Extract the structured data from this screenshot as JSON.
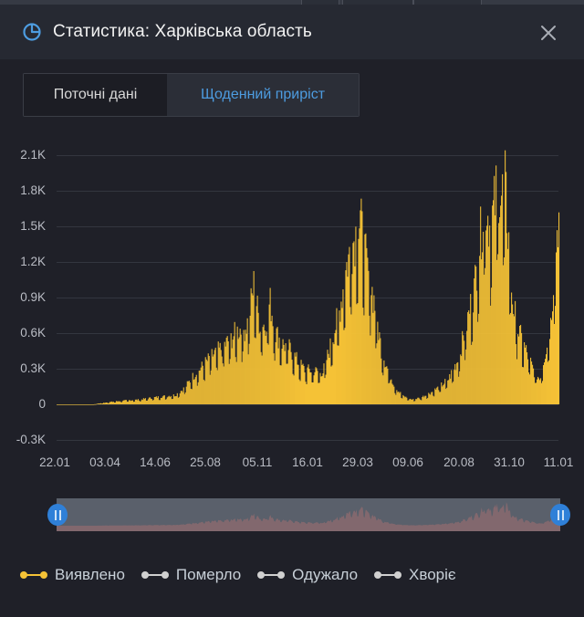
{
  "window": {
    "title": "Статистика: Харківська область",
    "icon": "pie-chart-icon",
    "close_icon": "close-icon"
  },
  "tabs": [
    {
      "label": "Поточні дані",
      "active": false
    },
    {
      "label": "Щоденний приріст",
      "active": true
    }
  ],
  "colors": {
    "accent": "#4d9ce0",
    "series_detected": "#f5c236",
    "series_inactive": "#d0d0d0",
    "background": "#1f2028",
    "header": "#262932",
    "handle": "#2f80d8"
  },
  "legend": [
    {
      "label": "Виявлено",
      "color": "#f5c236",
      "active": true
    },
    {
      "label": "Померло",
      "color": "#d0d0d0",
      "active": false
    },
    {
      "label": "Одужало",
      "color": "#d0d0d0",
      "active": false
    },
    {
      "label": "Хворіє",
      "color": "#d0d0d0",
      "active": false
    }
  ],
  "chart_data": {
    "type": "bar",
    "title": "Статистика: Харківська область — Щоденний приріст",
    "xlabel": "",
    "ylabel": "",
    "y_ticks": [
      "2.1K",
      "1.8K",
      "1.5K",
      "1.2K",
      "0.9K",
      "0.6K",
      "0.3K",
      "0",
      "-0.3K"
    ],
    "y_tick_values": [
      2100,
      1800,
      1500,
      1200,
      900,
      600,
      300,
      0,
      -300
    ],
    "ylim": [
      -300,
      2100
    ],
    "x_ticks": [
      "22.01",
      "03.04",
      "14.06",
      "25.08",
      "05.11",
      "16.01",
      "29.03",
      "09.06",
      "20.08",
      "31.10",
      "11.01"
    ],
    "grid": true,
    "legend_position": "bottom",
    "series": [
      {
        "name": "Виявлено",
        "color": "#f5c236",
        "note": "daily new cases; approximate envelope sampled at x-tick positions",
        "categories": [
          "22.01",
          "03.04",
          "14.06",
          "25.08",
          "05.11",
          "16.01",
          "29.03",
          "09.06",
          "20.08",
          "31.10",
          "11.01"
        ],
        "values": [
          0,
          20,
          60,
          450,
          700,
          300,
          1580,
          50,
          250,
          1930,
          1600
        ]
      }
    ],
    "envelope": [
      [
        0,
        0
      ],
      [
        40,
        0
      ],
      [
        53,
        15
      ],
      [
        70,
        30
      ],
      [
        90,
        40
      ],
      [
        108,
        60
      ],
      [
        130,
        80
      ],
      [
        140,
        140
      ],
      [
        150,
        250
      ],
      [
        160,
        330
      ],
      [
        170,
        420
      ],
      [
        180,
        480
      ],
      [
        190,
        560
      ],
      [
        200,
        650
      ],
      [
        205,
        640
      ],
      [
        210,
        720
      ],
      [
        216,
        1030
      ],
      [
        222,
        720
      ],
      [
        228,
        680
      ],
      [
        234,
        880
      ],
      [
        240,
        620
      ],
      [
        248,
        520
      ],
      [
        256,
        480
      ],
      [
        265,
        360
      ],
      [
        272,
        300
      ],
      [
        282,
        290
      ],
      [
        292,
        280
      ],
      [
        300,
        500
      ],
      [
        310,
        800
      ],
      [
        318,
        1200
      ],
      [
        326,
        1430
      ],
      [
        333,
        1580
      ],
      [
        340,
        1200
      ],
      [
        348,
        900
      ],
      [
        356,
        480
      ],
      [
        364,
        280
      ],
      [
        372,
        140
      ],
      [
        380,
        70
      ],
      [
        390,
        40
      ],
      [
        400,
        60
      ],
      [
        410,
        100
      ],
      [
        420,
        150
      ],
      [
        430,
        220
      ],
      [
        440,
        380
      ],
      [
        450,
        700
      ],
      [
        458,
        1000
      ],
      [
        465,
        1450
      ],
      [
        470,
        1790
      ],
      [
        476,
        1500
      ],
      [
        480,
        1700
      ],
      [
        484,
        1930
      ],
      [
        488,
        1800
      ],
      [
        492,
        1880
      ],
      [
        496,
        1400
      ],
      [
        500,
        900
      ],
      [
        506,
        650
      ],
      [
        512,
        520
      ],
      [
        518,
        400
      ],
      [
        524,
        280
      ],
      [
        530,
        220
      ],
      [
        536,
        450
      ],
      [
        542,
        700
      ],
      [
        546,
        1200
      ],
      [
        550,
        1600
      ]
    ]
  },
  "navigator": {
    "start_handle": "range-start-handle",
    "end_handle": "range-end-handle"
  }
}
